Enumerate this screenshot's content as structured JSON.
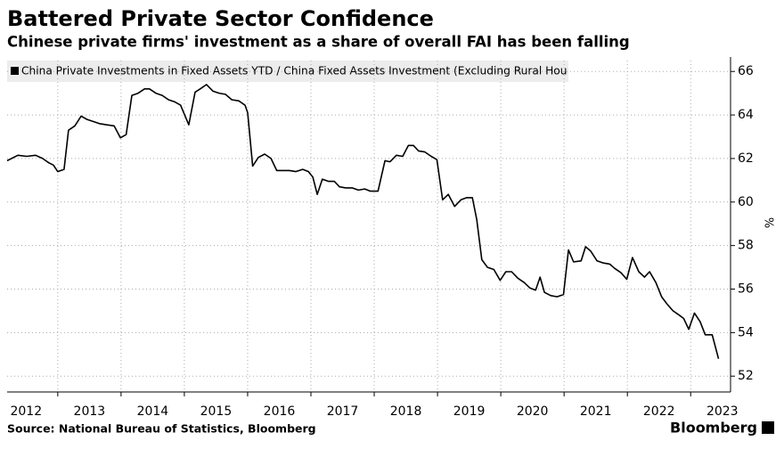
{
  "chart_data": {
    "type": "line",
    "title": "Battered Private Sector Confidence",
    "subtitle": "Chinese private firms' investment as a share of overall FAI has been falling",
    "source": "Source: National Bureau of Statistics, Bloomberg",
    "brand": "Bloomberg",
    "y_label": "%",
    "grid": true,
    "legend": "top-left",
    "x": [
      2012.2,
      2012.37,
      2012.51,
      2012.65,
      2012.76,
      2012.86,
      2012.93,
      2013.0,
      2013.1,
      2013.17,
      2013.27,
      2013.37,
      2013.46,
      2013.56,
      2013.66,
      2013.77,
      2013.89,
      2013.99,
      2014.08,
      2014.17,
      2014.27,
      2014.37,
      2014.45,
      2014.55,
      2014.65,
      2014.75,
      2014.85,
      2014.94,
      2015.07,
      2015.17,
      2015.25,
      2015.35,
      2015.45,
      2015.55,
      2015.65,
      2015.75,
      2015.86,
      2015.96,
      2016.0,
      2016.08,
      2016.17,
      2016.27,
      2016.37,
      2016.46,
      2016.56,
      2016.66,
      2016.76,
      2016.87,
      2016.96,
      2017.03,
      2017.1,
      2017.18,
      2017.28,
      2017.37,
      2017.45,
      2017.55,
      2017.65,
      2017.75,
      2017.85,
      2017.94,
      2018.06,
      2018.17,
      2018.25,
      2018.35,
      2018.45,
      2018.54,
      2018.62,
      2018.7,
      2018.8,
      2018.9,
      2018.99,
      2019.08,
      2019.17,
      2019.27,
      2019.37,
      2019.46,
      2019.55,
      2019.62,
      2019.7,
      2019.79,
      2019.89,
      2019.99,
      2020.08,
      2020.17,
      2020.27,
      2020.37,
      2020.46,
      2020.55,
      2020.62,
      2020.69,
      2020.79,
      2020.89,
      2020.99,
      2021.07,
      2021.15,
      2021.27,
      2021.34,
      2021.42,
      2021.52,
      2021.62,
      2021.72,
      2021.8,
      2021.9,
      2021.99,
      2022.08,
      2022.18,
      2022.27,
      2022.35,
      2022.45,
      2022.54,
      2022.63,
      2022.72,
      2022.82,
      2022.89,
      2022.97,
      2023.06,
      2023.15,
      2023.23,
      2023.34,
      2023.44
    ],
    "series": [
      {
        "name": "China Private Investments in Fixed Assets YTD / China Fixed Assets Investment (Excluding Rural Hou",
        "color": "#000000",
        "values": [
          61.9,
          62.15,
          62.1,
          62.15,
          62.0,
          61.8,
          61.7,
          61.4,
          61.5,
          63.3,
          63.5,
          63.95,
          63.8,
          63.7,
          63.6,
          63.55,
          63.5,
          62.95,
          63.1,
          64.9,
          65.0,
          65.2,
          65.2,
          65.0,
          64.9,
          64.7,
          64.6,
          64.45,
          63.55,
          65.05,
          65.2,
          65.4,
          65.1,
          65.0,
          64.95,
          64.7,
          64.65,
          64.45,
          64.1,
          61.65,
          62.05,
          62.2,
          62.0,
          61.45,
          61.45,
          61.45,
          61.4,
          61.5,
          61.4,
          61.15,
          60.35,
          61.05,
          60.95,
          60.95,
          60.7,
          60.65,
          60.65,
          60.55,
          60.6,
          60.5,
          60.5,
          61.9,
          61.85,
          62.15,
          62.1,
          62.6,
          62.6,
          62.35,
          62.3,
          62.1,
          61.95,
          60.1,
          60.35,
          59.8,
          60.1,
          60.2,
          60.2,
          59.2,
          57.35,
          57.0,
          56.9,
          56.4,
          56.8,
          56.8,
          56.5,
          56.3,
          56.05,
          55.95,
          56.55,
          55.85,
          55.7,
          55.65,
          55.75,
          57.8,
          57.25,
          57.3,
          57.95,
          57.75,
          57.3,
          57.2,
          57.15,
          56.95,
          56.75,
          56.45,
          57.45,
          56.8,
          56.55,
          56.8,
          56.3,
          55.65,
          55.3,
          55.0,
          54.8,
          54.65,
          54.15,
          54.9,
          54.5,
          53.9,
          53.9,
          52.8
        ]
      }
    ],
    "xlim": [
      2012.2,
      2023.63
    ],
    "xticks": [
      2012,
      2013,
      2014,
      2015,
      2016,
      2017,
      2018,
      2019,
      2020,
      2021,
      2022,
      2023
    ],
    "ylim": [
      51.6,
      66.5
    ],
    "yticks": [
      52,
      54,
      56,
      58,
      60,
      62,
      64,
      66
    ]
  }
}
